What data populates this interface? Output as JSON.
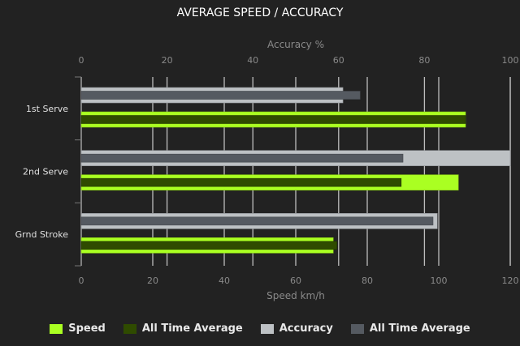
{
  "chart_data": {
    "type": "bar",
    "orientation": "horizontal",
    "title": "AVERAGE SPEED / ACCURACY",
    "categories": [
      "1st Serve",
      "2nd Serve",
      "Grnd Stroke"
    ],
    "top_axis": {
      "label": "Accuracy %",
      "range": [
        0,
        100
      ],
      "ticks": [
        "0",
        "20",
        "40",
        "60",
        "80",
        "100"
      ]
    },
    "bottom_axis": {
      "label": "Speed km/h",
      "range": [
        0,
        120
      ],
      "ticks": [
        "0",
        "20",
        "40",
        "60",
        "80",
        "100",
        "120"
      ]
    },
    "grid": true,
    "legend_position": "bottom",
    "series": [
      {
        "name": "Speed",
        "axis": "speed",
        "color": "#aaff22",
        "values": [
          107.5,
          105.5,
          70.5
        ]
      },
      {
        "name": "All Time Average",
        "axis": "speed",
        "color": "#2f4b00",
        "values": [
          107.5,
          89.5,
          71.5
        ]
      },
      {
        "name": "Accuracy",
        "axis": "accuracy",
        "color": "#bdc1c4",
        "values": [
          61,
          100,
          83
        ]
      },
      {
        "name": "All Time Average",
        "axis": "accuracy",
        "color": "#555a61",
        "values": [
          65,
          75,
          82
        ]
      }
    ]
  }
}
